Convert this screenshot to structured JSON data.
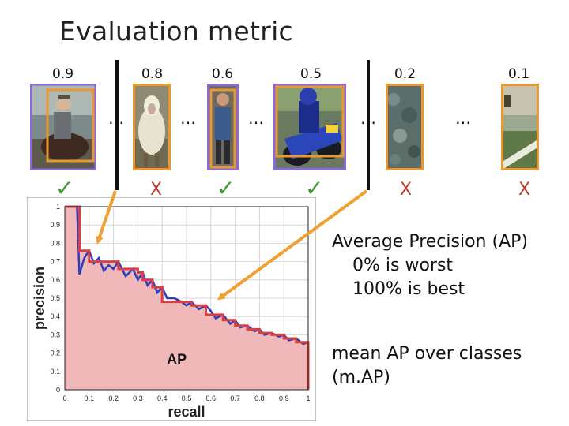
{
  "title": "Evaluation metric",
  "detections": [
    {
      "score": "0.9",
      "mark": "✓",
      "correct": true
    },
    {
      "score": "0.8",
      "mark": "X",
      "correct": false
    },
    {
      "score": "0.6",
      "mark": "✓",
      "correct": true
    },
    {
      "score": "0.5",
      "mark": "✓",
      "correct": true
    },
    {
      "score": "0.2",
      "mark": "X",
      "correct": false
    },
    {
      "score": "0.1",
      "mark": "X",
      "correct": false
    }
  ],
  "ellipsis": "…",
  "ellipsis_triple": "…",
  "ap_text": {
    "line1": "Average Precision (AP)",
    "line2": "0%  is worst",
    "line3": "100%  is best"
  },
  "map_text": {
    "line1": "mean AP over classes",
    "line2": "(m.AP)"
  },
  "colors": {
    "box_orange": "#e8982e",
    "box_purple": "#8b69d6",
    "check_green": "#3a9a2a",
    "x_red": "#c0392b",
    "arrow_orange": "#f0a030",
    "fill_pink": "#f0b8b8",
    "curve_red": "#d94040",
    "curve_blue": "#2a3fc0"
  },
  "chart_data": {
    "type": "line",
    "xlabel": "recall",
    "ylabel": "precision",
    "annotation": "AP",
    "xlim": [
      0,
      1
    ],
    "ylim": [
      0,
      1
    ],
    "xticks": [
      "0",
      "0.1",
      "0.2",
      "0.3",
      "0.4",
      "0.5",
      "0.6",
      "0.7",
      "0.8",
      "0.9",
      "1"
    ],
    "yticks": [
      "0",
      "0.1",
      "0.2",
      "0.3",
      "0.4",
      "0.5",
      "0.6",
      "0.7",
      "0.8",
      "0.9",
      "1"
    ],
    "series": [
      {
        "role": "precision",
        "x": [
          0,
          0.05,
          0.06,
          0.08,
          0.1,
          0.12,
          0.14,
          0.16,
          0.18,
          0.2,
          0.22,
          0.25,
          0.28,
          0.3,
          0.32,
          0.34,
          0.36,
          0.38,
          0.4,
          0.42,
          0.45,
          0.48,
          0.5,
          0.52,
          0.55,
          0.58,
          0.6,
          0.62,
          0.65,
          0.68,
          0.7,
          0.72,
          0.75,
          0.78,
          0.8,
          0.82,
          0.85,
          0.88,
          0.9,
          0.92,
          0.95,
          0.98,
          1.0
        ],
        "y": [
          1.0,
          1.0,
          0.63,
          0.72,
          0.76,
          0.69,
          0.72,
          0.65,
          0.68,
          0.66,
          0.7,
          0.62,
          0.66,
          0.6,
          0.64,
          0.57,
          0.6,
          0.53,
          0.56,
          0.5,
          0.5,
          0.48,
          0.46,
          0.48,
          0.44,
          0.46,
          0.43,
          0.39,
          0.41,
          0.36,
          0.38,
          0.34,
          0.35,
          0.32,
          0.33,
          0.3,
          0.31,
          0.29,
          0.3,
          0.27,
          0.28,
          0.25,
          0.26
        ]
      },
      {
        "role": "interpolated-precision",
        "x": [
          0,
          0.06,
          0.06,
          0.1,
          0.1,
          0.22,
          0.22,
          0.3,
          0.3,
          0.32,
          0.32,
          0.36,
          0.36,
          0.4,
          0.4,
          0.52,
          0.52,
          0.58,
          0.58,
          0.65,
          0.65,
          0.7,
          0.7,
          0.75,
          0.75,
          0.8,
          0.8,
          0.85,
          0.85,
          0.9,
          0.9,
          0.95,
          0.95,
          1.0,
          1.0
        ],
        "y": [
          1.0,
          1.0,
          0.76,
          0.76,
          0.7,
          0.7,
          0.66,
          0.66,
          0.64,
          0.64,
          0.6,
          0.6,
          0.56,
          0.56,
          0.48,
          0.48,
          0.46,
          0.46,
          0.41,
          0.41,
          0.38,
          0.38,
          0.35,
          0.35,
          0.33,
          0.33,
          0.31,
          0.31,
          0.3,
          0.3,
          0.28,
          0.28,
          0.26,
          0.26,
          0
        ]
      }
    ]
  }
}
